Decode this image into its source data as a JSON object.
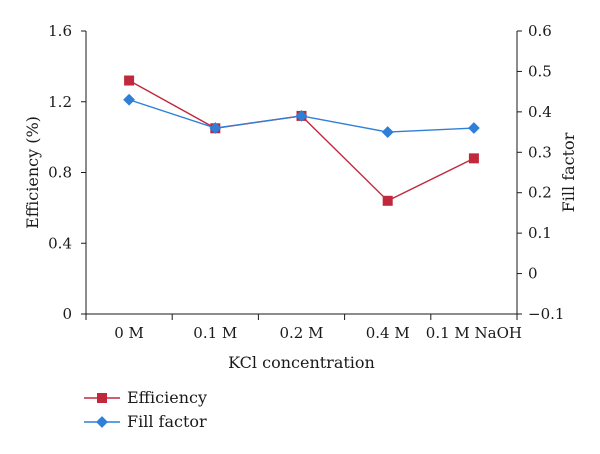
{
  "chart_data": {
    "type": "line",
    "categories": [
      "0 M",
      "0.1 M",
      "0.2 M",
      "0.4 M",
      "0.1 M NaOH"
    ],
    "xlabel": "KCl concentration",
    "ylabel": "Efficiency (%)",
    "y2label": "Fill factor",
    "ylim": [
      0,
      1.6
    ],
    "y2lim": [
      -0.1,
      0.6
    ],
    "yticks": [
      "0",
      "0.4",
      "0.8",
      "1.2",
      "1.6"
    ],
    "y2ticks": [
      "−0.1",
      "0",
      "0.1",
      "0.2",
      "0.3",
      "0.4",
      "0.5",
      "0.6"
    ],
    "grid": false,
    "legend_position": "bottom-left",
    "series": [
      {
        "name": "Efficiency",
        "axis": "left",
        "marker": "square",
        "color": "#c0283c",
        "values": [
          1.32,
          1.05,
          1.12,
          0.64,
          0.88
        ]
      },
      {
        "name": "Fill factor",
        "axis": "right",
        "marker": "diamond",
        "color": "#2f7fd8",
        "values": [
          0.43,
          0.36,
          0.39,
          0.35,
          0.36
        ]
      }
    ]
  }
}
